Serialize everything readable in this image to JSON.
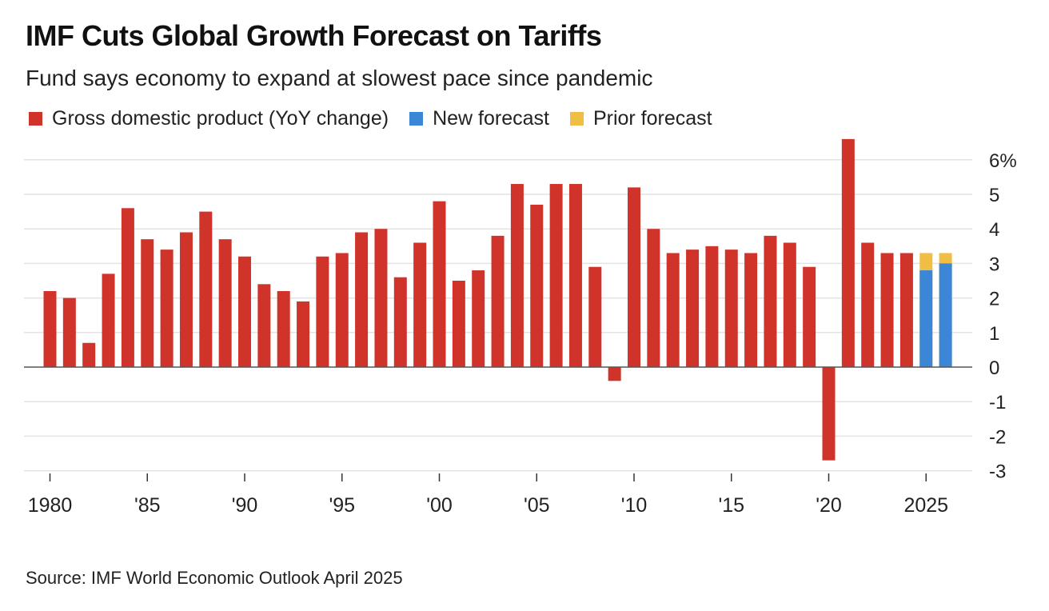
{
  "chart_data": {
    "type": "bar",
    "title": "IMF Cuts Global Growth Forecast on Tariffs",
    "subtitle": "Fund says economy to expand at slowest pace since pandemic",
    "legend": [
      {
        "label": "Gross domestic product (YoY change)",
        "color": "#d0332a"
      },
      {
        "label": "New forecast",
        "color": "#3b86d6"
      },
      {
        "label": "Prior forecast",
        "color": "#f0bd45"
      }
    ],
    "years": [
      1980,
      1981,
      1982,
      1983,
      1984,
      1985,
      1986,
      1987,
      1988,
      1989,
      1990,
      1991,
      1992,
      1993,
      1994,
      1995,
      1996,
      1997,
      1998,
      1999,
      2000,
      2001,
      2002,
      2003,
      2004,
      2005,
      2006,
      2007,
      2008,
      2009,
      2010,
      2011,
      2012,
      2013,
      2014,
      2015,
      2016,
      2017,
      2018,
      2019,
      2020,
      2021,
      2022,
      2023,
      2024
    ],
    "gdp_values": [
      2.2,
      2.0,
      0.7,
      2.7,
      4.6,
      3.7,
      3.4,
      3.9,
      4.5,
      3.7,
      3.2,
      2.4,
      2.2,
      1.9,
      3.2,
      3.3,
      3.9,
      4.0,
      2.6,
      3.6,
      4.8,
      2.5,
      2.8,
      3.8,
      5.3,
      4.7,
      5.3,
      5.3,
      2.9,
      -0.4,
      5.2,
      4.0,
      3.3,
      3.4,
      3.5,
      3.4,
      3.3,
      3.8,
      3.6,
      2.9,
      -2.7,
      6.6,
      3.6,
      3.3,
      3.3
    ],
    "forecast_years": [
      2025,
      2026
    ],
    "new_forecast": [
      2.8,
      3.0
    ],
    "prior_forecast": [
      3.3,
      3.3
    ],
    "ylim": [
      -3,
      6.6
    ],
    "y_ticks": [
      6,
      5,
      4,
      3,
      2,
      1,
      0,
      -1,
      -2,
      -3
    ],
    "y_tick_labels": [
      "6%",
      "5",
      "4",
      "3",
      "2",
      "1",
      "0",
      "-1",
      "-2",
      "-3"
    ],
    "x_ticks": [
      1980,
      1985,
      1990,
      1995,
      2000,
      2005,
      2010,
      2015,
      2020,
      2025
    ],
    "x_tick_labels": [
      "1980",
      "'85",
      "'90",
      "'95",
      "'00",
      "'05",
      "'10",
      "'15",
      "'20",
      "2025"
    ],
    "grid": true,
    "legend_position": "top-left",
    "source": "Source: IMF World Economic Outlook April 2025"
  }
}
